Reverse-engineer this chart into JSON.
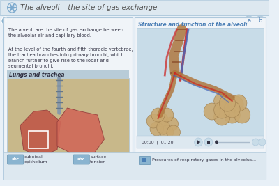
{
  "title": "The alveoli – the site of gas exchange",
  "bg_top": "#dde8f0",
  "bg_main": "#e8f0f7",
  "bg_body": "#f0f4f8",
  "header_text_color": "#555555",
  "left_panel_text1": "The alveoli are the site of gas exchange between\nthe alveolar air and capillary blood.",
  "left_panel_text2": "At the level of the fourth and fifth thoracic vertebrae,\nthe trachea branches into primary bronchi, which\nbranch further to give rise to the lobar and\nsegmental bronchi.",
  "lungs_label": "Lungs and trachea",
  "right_panel_label": "Structure and function of the alveoli",
  "time_text": "00:00  |  01:20",
  "bottom_label1": "cuboidal\nepithelium",
  "bottom_label2": "surface\ntension",
  "bottom_right_text": "Pressures of respiratory gases in the alveolus...",
  "accent_blue": "#4a7eb5",
  "accent_blue_light": "#6fa8d6",
  "text_dark": "#333344",
  "text_mid": "#444455",
  "panel_border": "#aec8dc",
  "lung_bg": "#c8b88a",
  "lung_body_color": "#c05040",
  "alveoli_bg": "#c8dce8",
  "nav_bg": "#c8dce8"
}
